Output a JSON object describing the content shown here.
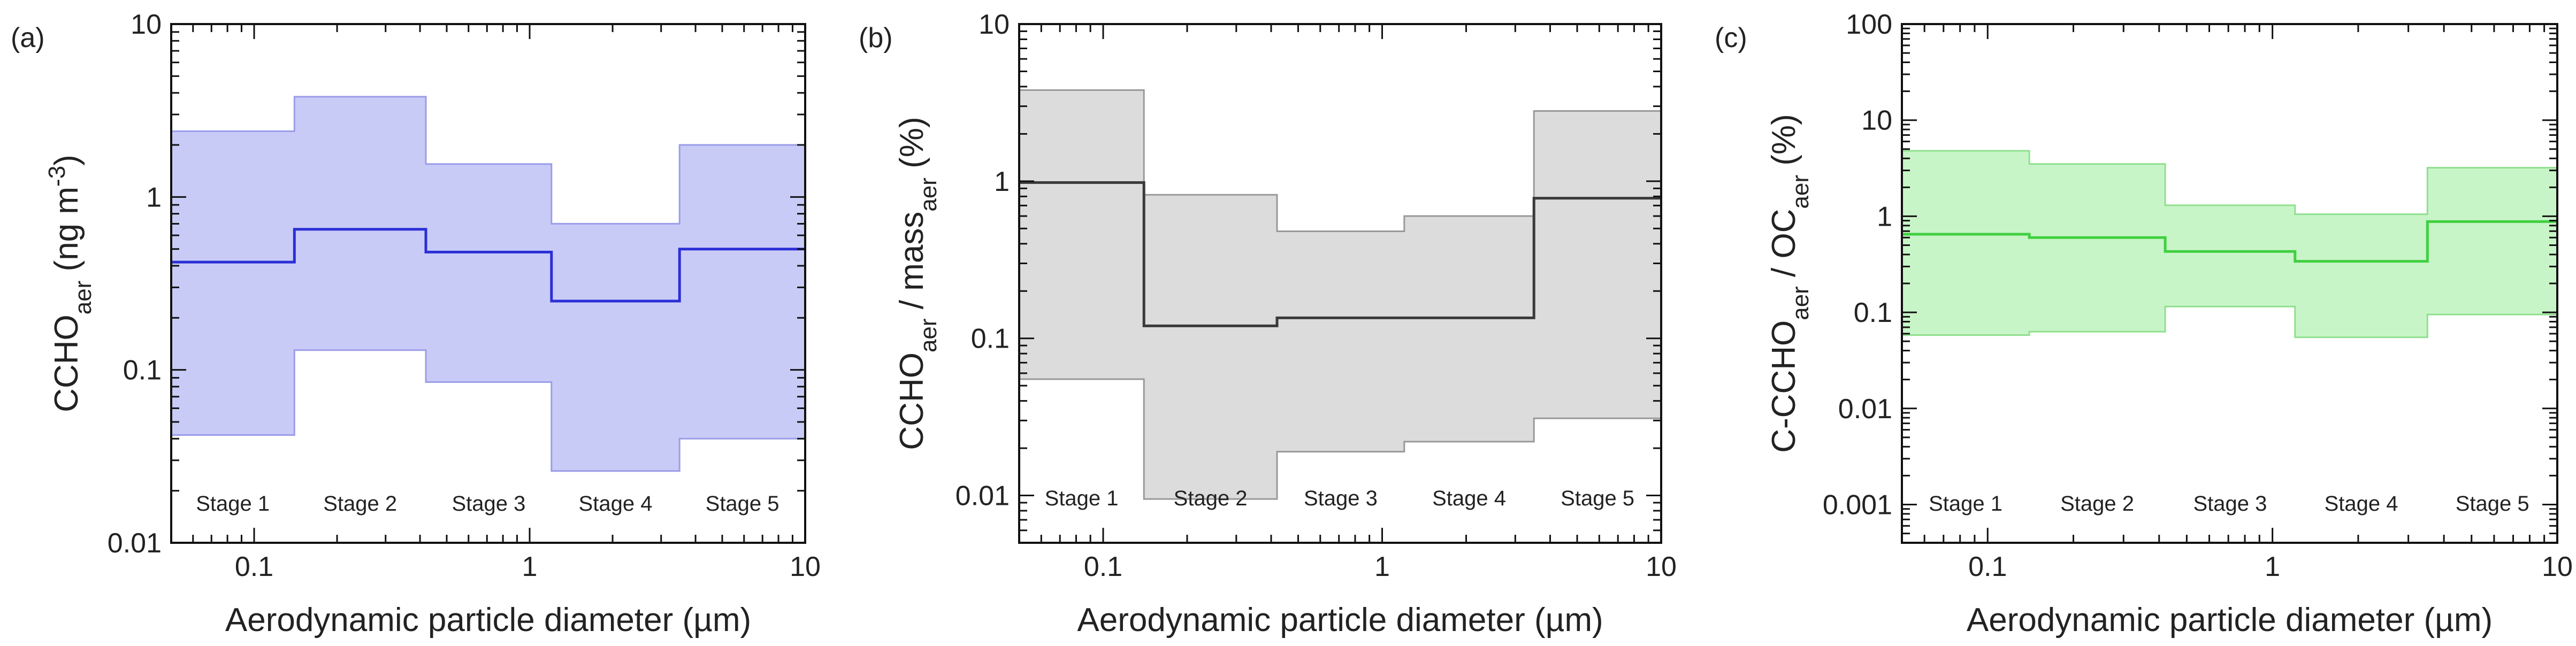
{
  "chart_data": [
    {
      "type": "area",
      "panel_label": "(a)",
      "xlabel": "Aerodynamic particle diameter (µm)",
      "ylabel_parts": {
        "main": "CCHO",
        "sub": "aer",
        "unit_pre": " (ng m",
        "unit_sup": "-3",
        "unit_post": ")"
      },
      "x_scale": "log",
      "y_scale": "log",
      "xlim": [
        0.05,
        10
      ],
      "ylim": [
        0.01,
        10
      ],
      "x_ticks": [
        0.1,
        1,
        10
      ],
      "x_tick_labels": [
        "0.1",
        "1",
        "10"
      ],
      "y_ticks": [
        0.01,
        0.1,
        1,
        10
      ],
      "y_tick_labels": [
        "0.01",
        "0.1",
        "1",
        "10"
      ],
      "colors": {
        "fill": "#c9cbf7",
        "line": "#2a2fd6",
        "edge": "#9a9de8"
      },
      "bin_edges": [
        0.05,
        0.14,
        0.42,
        1.2,
        3.5,
        10
      ],
      "stages": [
        "Stage 1",
        "Stage 2",
        "Stage 3",
        "Stage 4",
        "Stage 5"
      ],
      "median": [
        0.42,
        0.65,
        0.48,
        0.25,
        0.5
      ],
      "lower": [
        0.042,
        0.13,
        0.085,
        0.026,
        0.04
      ],
      "upper": [
        2.4,
        3.8,
        1.55,
        0.7,
        2.0
      ]
    },
    {
      "type": "area",
      "panel_label": "(b)",
      "xlabel": "Aerodynamic particle diameter (µm)",
      "ylabel_parts": {
        "main": "CCHO",
        "sub": "aer",
        "mid": " / mass",
        "sub2": "aer",
        "tail": " (%)"
      },
      "x_scale": "log",
      "y_scale": "log",
      "xlim": [
        0.05,
        10
      ],
      "ylim": [
        0.005,
        10
      ],
      "x_ticks": [
        0.1,
        1,
        10
      ],
      "x_tick_labels": [
        "0.1",
        "1",
        "10"
      ],
      "y_ticks": [
        0.01,
        0.1,
        1,
        10
      ],
      "y_tick_labels": [
        "0.01",
        "0.1",
        "1",
        "10"
      ],
      "colors": {
        "fill": "#dcdcdc",
        "line": "#3a3a3a",
        "edge": "#999999"
      },
      "bin_edges": [
        0.05,
        0.14,
        0.42,
        1.2,
        3.5,
        10
      ],
      "stages": [
        "Stage 1",
        "Stage 2",
        "Stage 3",
        "Stage 4",
        "Stage 5"
      ],
      "median": [
        0.98,
        0.12,
        0.135,
        0.135,
        0.78
      ],
      "lower": [
        0.055,
        0.0095,
        0.019,
        0.022,
        0.031
      ],
      "upper": [
        3.8,
        0.82,
        0.48,
        0.6,
        2.8
      ]
    },
    {
      "type": "area",
      "panel_label": "(c)",
      "xlabel": "Aerodynamic particle diameter (µm)",
      "ylabel_parts": {
        "main": "C-CCHO",
        "sub": "aer",
        "mid": " / OC",
        "sub2": "aer",
        "tail": " (%)"
      },
      "x_scale": "log",
      "y_scale": "log",
      "xlim": [
        0.05,
        10
      ],
      "ylim": [
        0.0004,
        100
      ],
      "x_ticks": [
        0.1,
        1,
        10
      ],
      "x_tick_labels": [
        "0.1",
        "1",
        "10"
      ],
      "y_ticks": [
        0.001,
        0.01,
        0.1,
        1,
        10,
        100
      ],
      "y_tick_labels": [
        "0.001",
        "0.01",
        "0.1",
        "1",
        "10",
        "100"
      ],
      "colors": {
        "fill": "#c8f5c8",
        "line": "#40d040",
        "edge": "#8fe08f"
      },
      "bin_edges": [
        0.05,
        0.14,
        0.42,
        1.2,
        3.5,
        10
      ],
      "stages": [
        "Stage 1",
        "Stage 2",
        "Stage 3",
        "Stage 4",
        "Stage 5"
      ],
      "median": [
        0.65,
        0.6,
        0.43,
        0.34,
        0.88
      ],
      "lower": [
        0.058,
        0.063,
        0.115,
        0.055,
        0.095
      ],
      "upper": [
        4.8,
        3.5,
        1.3,
        1.05,
        3.2
      ]
    }
  ]
}
